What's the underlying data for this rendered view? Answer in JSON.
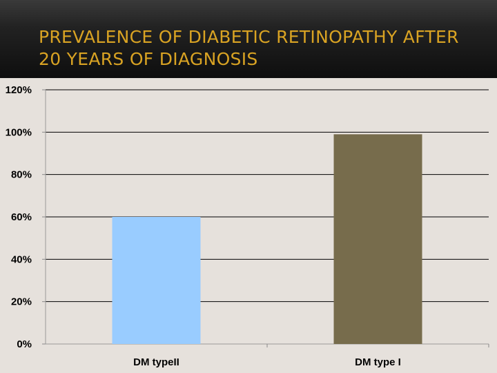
{
  "slide": {
    "title": "Prevalence of diabetic retinopathy after 20 years of diagnosis"
  },
  "chart_data": {
    "type": "bar",
    "categories": [
      "DM typeII",
      "DM type I"
    ],
    "series": [
      {
        "values": [
          60,
          99
        ],
        "colors": [
          "#99ccff",
          "#776c4c"
        ]
      }
    ],
    "yticks": [
      "0%",
      "20%",
      "40%",
      "60%",
      "80%",
      "100%",
      "120%"
    ],
    "ylim": [
      0,
      120
    ],
    "grid": true,
    "legend": "none"
  }
}
